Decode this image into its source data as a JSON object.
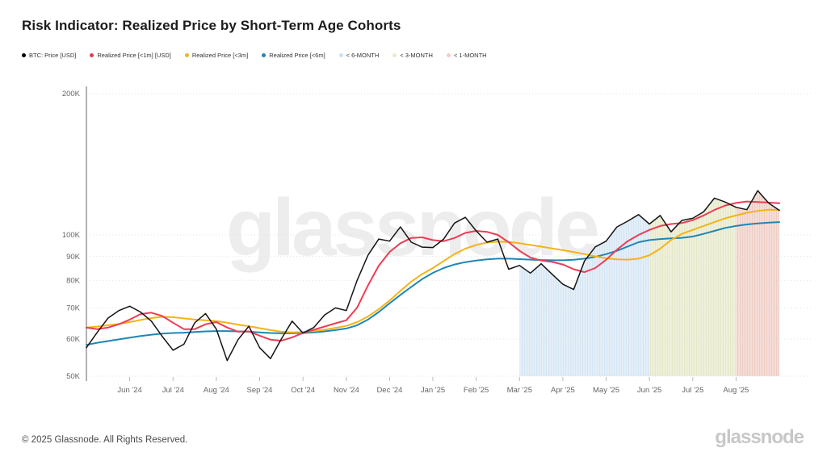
{
  "header": {
    "title": "Risk Indicator: Realized Price by Short-Term Age Cohorts"
  },
  "watermark": "glassnode",
  "footer": {
    "copyright": "© 2025 Glassnode. All Rights Reserved.",
    "brand": "glassnode"
  },
  "legend": {
    "items": [
      {
        "label": "BTC: Price [USD]",
        "color": "#000000"
      },
      {
        "label": "Realized Price [<1m] [USD]",
        "color": "#e8364f"
      },
      {
        "label": "Realized Price [<3m]",
        "color": "#f5b317"
      },
      {
        "label": "Realized Price [<6m]",
        "color": "#1f86b4"
      },
      {
        "label": "< 6-MONTH",
        "color": "#c9e2f5"
      },
      {
        "label": "< 3-MONTH",
        "color": "#efe9c5"
      },
      {
        "label": "< 1-MONTH",
        "color": "#f6cbc6"
      }
    ]
  },
  "chart_data": {
    "type": "line",
    "title": "Risk Indicator: Realized Price by Short-Term Age Cohorts",
    "y_scale": "log",
    "ylim": [
      50000,
      200000
    ],
    "values_unit": "thousand USD",
    "points_per_month": 4,
    "x_range": [
      "May '24",
      "Aug '25"
    ],
    "x_tick_labels": [
      "Jun '24",
      "Jul '24",
      "Aug '24",
      "Sep '24",
      "Oct '24",
      "Nov '24",
      "Dec '24",
      "Jan '25",
      "Feb '25",
      "Mar '25",
      "Apr '25",
      "May '25",
      "Jun '25",
      "Jul '25",
      "Aug '25"
    ],
    "y_ticks": [
      {
        "v": 200,
        "label": "200K"
      },
      {
        "v": 100,
        "label": "100K"
      },
      {
        "v": 90,
        "label": "90K"
      },
      {
        "v": 80,
        "label": "80K"
      },
      {
        "v": 70,
        "label": "70K"
      },
      {
        "v": 60,
        "label": "60K"
      },
      {
        "v": 50,
        "label": "50K"
      }
    ],
    "series": [
      {
        "name": "BTC: Price [USD]",
        "color": "#141414",
        "width": 1.5,
        "values": [
          57.5,
          62.0,
          66.5,
          69.0,
          70.5,
          68.5,
          65.5,
          60.8,
          56.8,
          58.5,
          65.0,
          68.0,
          63.0,
          54.0,
          59.8,
          63.9,
          57.5,
          54.5,
          60.0,
          65.5,
          61.8,
          63.5,
          67.5,
          69.9,
          69.0,
          80.0,
          90.5,
          98.0,
          97.0,
          104.0,
          96.5,
          94.2,
          94.0,
          98.0,
          106.0,
          109.0,
          102.0,
          96.5,
          98.0,
          84.5,
          86.1,
          82.9,
          86.8,
          82.5,
          78.5,
          76.5,
          88.0,
          94.3,
          97.0,
          104.0,
          107.0,
          110.5,
          105.5,
          110.0,
          101.5,
          107.4,
          108.5,
          112.0,
          119.8,
          117.5,
          114.5,
          113.2,
          124.3,
          117.0,
          112.8
        ]
      },
      {
        "name": "Realized Price [<1m] [USD]",
        "color": "#ed3d54",
        "width": 2,
        "values": [
          63.5,
          63.0,
          63.5,
          64.5,
          66.0,
          67.8,
          68.3,
          67.2,
          65.0,
          63.0,
          63.0,
          64.5,
          65.2,
          63.5,
          62.2,
          62.3,
          61.0,
          59.8,
          59.5,
          60.5,
          61.8,
          62.8,
          63.8,
          64.8,
          65.8,
          70.0,
          78.0,
          86.0,
          92.0,
          96.0,
          98.5,
          98.8,
          97.5,
          97.0,
          98.5,
          101.0,
          102.0,
          101.5,
          100.0,
          96.5,
          92.5,
          89.5,
          88.2,
          87.6,
          86.5,
          84.5,
          83.3,
          85.0,
          88.5,
          93.0,
          97.0,
          100.0,
          102.5,
          104.5,
          105.5,
          106.0,
          107.5,
          110.0,
          113.0,
          115.5,
          117.0,
          117.8,
          117.5,
          117.2,
          116.8
        ]
      },
      {
        "name": "Realized Price [<3m]",
        "color": "#f5b317",
        "width": 2,
        "values": [
          63.5,
          63.8,
          64.2,
          64.6,
          65.2,
          65.9,
          66.5,
          66.9,
          66.8,
          66.4,
          66.0,
          65.8,
          65.5,
          65.0,
          64.4,
          63.9,
          63.3,
          62.7,
          62.2,
          62.0,
          62.1,
          62.4,
          62.8,
          63.4,
          64.0,
          65.2,
          67.0,
          69.5,
          72.5,
          76.0,
          79.5,
          82.5,
          85.0,
          88.0,
          91.0,
          93.5,
          95.2,
          96.3,
          96.8,
          96.6,
          96.0,
          95.2,
          94.4,
          93.6,
          92.8,
          92.0,
          91.0,
          90.0,
          89.2,
          88.7,
          88.6,
          89.0,
          90.5,
          93.5,
          97.5,
          100.5,
          102.5,
          104.5,
          106.5,
          108.5,
          110.0,
          111.5,
          112.5,
          113.2,
          113.0
        ]
      },
      {
        "name": "Realized Price [<6m]",
        "color": "#1f86b4",
        "width": 2,
        "values": [
          58.3,
          58.9,
          59.4,
          59.9,
          60.4,
          60.9,
          61.3,
          61.6,
          61.8,
          61.9,
          62.1,
          62.3,
          62.4,
          62.4,
          62.3,
          62.2,
          62.0,
          61.8,
          61.7,
          61.7,
          61.8,
          62.0,
          62.3,
          62.7,
          63.2,
          64.2,
          66.0,
          68.5,
          71.5,
          74.5,
          77.5,
          80.5,
          83.0,
          85.0,
          86.5,
          87.5,
          88.2,
          88.7,
          89.0,
          89.0,
          88.8,
          88.6,
          88.4,
          88.3,
          88.3,
          88.5,
          89.0,
          89.8,
          91.0,
          92.5,
          94.5,
          96.5,
          97.5,
          98.0,
          98.3,
          98.6,
          99.2,
          100.5,
          102.0,
          103.5,
          104.5,
          105.3,
          105.8,
          106.2,
          106.5
        ]
      }
    ],
    "bands": [
      {
        "name": "< 6-MONTH",
        "color": "#e3eef8",
        "stripe": "#cfe3f1",
        "start_index": 40,
        "end_index": 52,
        "x_range": [
          "Mar '25",
          "Jun '25"
        ]
      },
      {
        "name": "< 3-MONTH",
        "color": "#eef0da",
        "stripe": "#e2e6c4",
        "start_index": 52,
        "end_index": 60,
        "x_range": [
          "Jun '25",
          "Aug '25"
        ]
      },
      {
        "name": "< 1-MONTH",
        "color": "#f5ddd6",
        "stripe": "#eac6bc",
        "start_index": 60,
        "end_index": 64,
        "x_range": [
          "Aug '25",
          "end"
        ]
      }
    ],
    "legend_position": "top-left",
    "grid": "dotted-horizontal"
  }
}
